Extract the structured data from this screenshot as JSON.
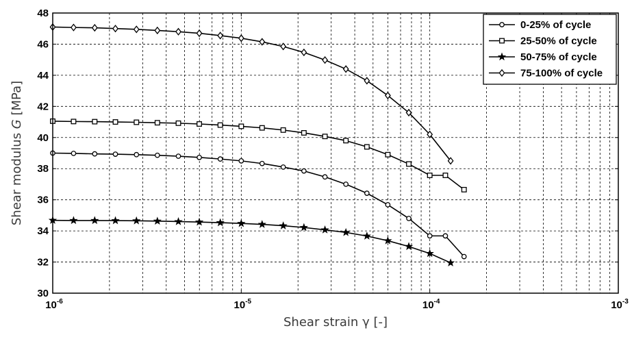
{
  "chart_data": {
    "type": "line",
    "title": "",
    "xlabel_prefix": "Shear strain ",
    "xlabel_symbol": "γ",
    "xlabel_suffix": " [-]",
    "ylabel_prefix": "Shear modulus ",
    "ylabel_symbol": "G",
    "ylabel_suffix": " [MPa]",
    "x_scale": "log",
    "xlim": [
      1e-06,
      0.001
    ],
    "ylim": [
      30,
      48
    ],
    "y_ticks": [
      30,
      32,
      34,
      36,
      38,
      40,
      42,
      44,
      46,
      48
    ],
    "x_ticks": [
      {
        "value": 1e-06,
        "base": "10",
        "exp": "-6"
      },
      {
        "value": 1e-05,
        "base": "10",
        "exp": "-5"
      },
      {
        "value": 0.0001,
        "base": "10",
        "exp": "-4"
      },
      {
        "value": 0.001,
        "base": "10",
        "exp": "-3"
      }
    ],
    "grid": true,
    "legend_position": "top-right",
    "series": [
      {
        "name": "0-25% of cycle",
        "marker": "circle",
        "x": [
          1e-06,
          1.29e-06,
          1.67e-06,
          2.15e-06,
          2.78e-06,
          3.59e-06,
          4.64e-06,
          5.99e-06,
          7.74e-06,
          1e-05,
          1.29e-05,
          1.67e-05,
          2.15e-05,
          2.78e-05,
          3.59e-05,
          4.64e-05,
          5.99e-05,
          7.74e-05,
          0.0001,
          0.000121,
          0.000152
        ],
        "y": [
          39.0,
          38.98,
          38.95,
          38.93,
          38.9,
          38.86,
          38.8,
          38.72,
          38.62,
          38.5,
          38.33,
          38.1,
          37.85,
          37.47,
          37.0,
          36.42,
          35.68,
          34.8,
          33.68,
          33.68,
          32.35
        ]
      },
      {
        "name": "25-50% of cycle",
        "marker": "square",
        "x": [
          1e-06,
          1.29e-06,
          1.67e-06,
          2.15e-06,
          2.78e-06,
          3.59e-06,
          4.64e-06,
          5.99e-06,
          7.74e-06,
          1e-05,
          1.29e-05,
          1.67e-05,
          2.15e-05,
          2.78e-05,
          3.59e-05,
          4.64e-05,
          5.99e-05,
          7.74e-05,
          0.0001,
          0.000121,
          0.000152
        ],
        "y": [
          41.05,
          41.03,
          41.02,
          41.0,
          40.98,
          40.95,
          40.92,
          40.87,
          40.8,
          40.72,
          40.62,
          40.48,
          40.3,
          40.07,
          39.8,
          39.4,
          38.9,
          38.3,
          37.57,
          37.57,
          36.65
        ]
      },
      {
        "name": "50-75% of cycle",
        "marker": "star",
        "x": [
          1e-06,
          1.29e-06,
          1.67e-06,
          2.15e-06,
          2.78e-06,
          3.59e-06,
          4.64e-06,
          5.99e-06,
          7.74e-06,
          1e-05,
          1.29e-05,
          1.67e-05,
          2.15e-05,
          2.78e-05,
          3.59e-05,
          4.64e-05,
          5.99e-05,
          7.74e-05,
          0.0001,
          0.000129
        ],
        "y": [
          34.68,
          34.67,
          34.67,
          34.66,
          34.65,
          34.63,
          34.6,
          34.57,
          34.53,
          34.48,
          34.42,
          34.33,
          34.22,
          34.07,
          33.9,
          33.67,
          33.37,
          33.0,
          32.55,
          31.95
        ]
      },
      {
        "name": "75-100% of cycle",
        "marker": "diamond",
        "x": [
          1e-06,
          1.29e-06,
          1.67e-06,
          2.15e-06,
          2.78e-06,
          3.59e-06,
          4.64e-06,
          5.99e-06,
          7.74e-06,
          1e-05,
          1.29e-05,
          1.67e-05,
          2.15e-05,
          2.78e-05,
          3.59e-05,
          4.64e-05,
          5.99e-05,
          7.74e-05,
          0.0001,
          0.000129
        ],
        "y": [
          47.1,
          47.07,
          47.05,
          47.0,
          46.95,
          46.88,
          46.8,
          46.7,
          46.55,
          46.38,
          46.15,
          45.85,
          45.47,
          44.98,
          44.4,
          43.65,
          42.7,
          41.6,
          40.2,
          38.5
        ]
      }
    ]
  }
}
